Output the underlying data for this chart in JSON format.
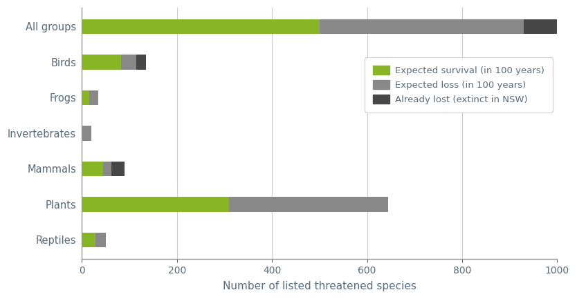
{
  "categories": [
    "All groups",
    "Birds",
    "Frogs",
    "Invertebrates",
    "Mammals",
    "Plants",
    "Reptiles"
  ],
  "survival": [
    500,
    83,
    15,
    0,
    45,
    310,
    28
  ],
  "loss": [
    430,
    32,
    20,
    20,
    17,
    335,
    22
  ],
  "already_lost": [
    70,
    20,
    0,
    0,
    28,
    0,
    0
  ],
  "color_survival": "#87b526",
  "color_loss": "#888888",
  "color_already_lost": "#474747",
  "xlabel": "Number of listed threatened species",
  "legend_labels": [
    "Expected survival (in 100 years)",
    "Expected loss (in 100 years)",
    "Already lost (extinct in NSW)"
  ],
  "xlim": [
    0,
    1000
  ],
  "xticks": [
    0,
    200,
    400,
    600,
    800,
    1000
  ],
  "background_color": "#ffffff",
  "text_color": "#5a6b7a",
  "label_color": "#5a6b7a",
  "bar_height": 0.42,
  "figsize": [
    8.34,
    4.33
  ],
  "dpi": 100
}
